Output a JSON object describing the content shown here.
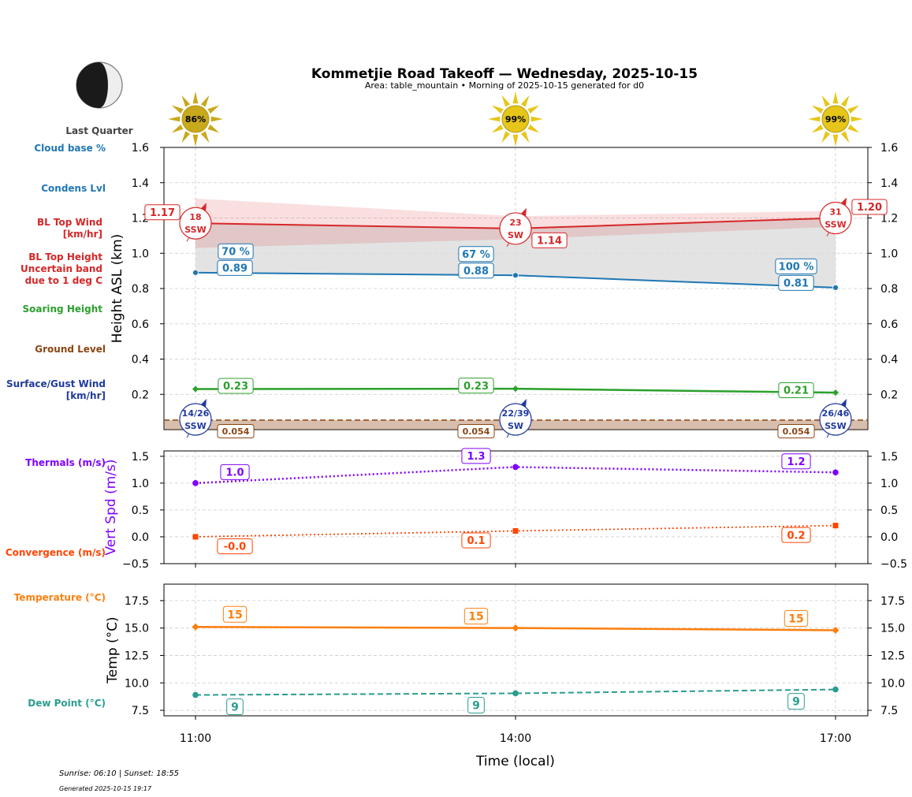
{
  "title": "Kommetjie Road Takeoff — Wednesday, 2025-10-15",
  "subtitle": "Area: table_mountain • Morning of 2025-10-15 generated for d0",
  "moon": {
    "phase_label": "Last Quarter"
  },
  "footer": {
    "sun_times": "Sunrise: 06:10 | Sunset: 18:55",
    "generated": "Generated 2025-10-15 19:17"
  },
  "colors": {
    "cloud": "#1f77b4",
    "bltop": "#d62728",
    "soar": "#2ca02c",
    "ground": "#8b4513",
    "surface": "#1f3a9e",
    "thermal": "#7f00ff",
    "conv": "#ff4500",
    "temp": "#ff7f0e",
    "dew": "#2a9d8f",
    "sun": "#e6c619",
    "sun_dim": "#c9a91c"
  },
  "side_labels": {
    "cloud_base": "Cloud base %",
    "condens": "Condens Lvl",
    "bltop_wind": [
      "BL Top Wind",
      "[km/hr]"
    ],
    "bltop_height": [
      "BL Top Height",
      "Uncertain band",
      "due to 1 deg C"
    ],
    "soaring": "Soaring Height",
    "ground": "Ground Level",
    "surface_wind": [
      "Surface/Gust Wind",
      "[km/hr]"
    ],
    "thermals": "Thermals (m/s)",
    "convergence": "Convergence (m/s)",
    "temperature": "Temperature (°C)",
    "dewpoint": "Dew Point (°C)"
  },
  "chart_data": [
    {
      "type": "line",
      "ylabel": "Height ASL (km)",
      "ylim": [
        0,
        1.6
      ],
      "yticks": [
        "0.2",
        "0.4",
        "0.6",
        "0.8",
        "1.0",
        "1.2",
        "1.4",
        "1.6"
      ],
      "x": [
        "11:00",
        "14:00",
        "17:00"
      ],
      "grid": true,
      "sun_percent": [
        "86%",
        "99%",
        "99%"
      ],
      "series": [
        {
          "key": "bltop",
          "values": [
            1.17,
            1.14,
            1.2
          ],
          "labels": [
            "1.17",
            "1.14",
            "1.20"
          ],
          "band_upper": [
            1.31,
            1.21,
            1.24
          ],
          "band_lower": [
            1.03,
            1.08,
            1.15
          ]
        },
        {
          "key": "condens",
          "values": [
            0.89,
            0.875,
            0.805
          ],
          "labels": [
            "0.89",
            "0.88",
            "0.81"
          ]
        },
        {
          "key": "cloud_pct",
          "labels": [
            "70 %",
            "67 %",
            "100 %"
          ]
        },
        {
          "key": "soar",
          "values": [
            0.23,
            0.232,
            0.21
          ],
          "labels": [
            "0.23",
            "0.23",
            "0.21"
          ]
        },
        {
          "key": "ground",
          "values": [
            0.054,
            0.054,
            0.054
          ],
          "labels": [
            "0.054",
            "0.054",
            "0.054"
          ]
        }
      ],
      "bltop_wind": [
        {
          "speed": "18",
          "dir": "SSW"
        },
        {
          "speed": "23",
          "dir": "SW"
        },
        {
          "speed": "31",
          "dir": "SSW"
        }
      ],
      "surface_wind": [
        {
          "speed": "14/26",
          "dir": "SSW"
        },
        {
          "speed": "22/39",
          "dir": "SW"
        },
        {
          "speed": "26/46",
          "dir": "SSW"
        }
      ]
    },
    {
      "type": "line",
      "ylabel": "Vert Spd (m/s)",
      "ylim": [
        -0.5,
        1.6
      ],
      "yticks": [
        "−0.5",
        "0.0",
        "0.5",
        "1.0",
        "1.5"
      ],
      "x": [
        "11:00",
        "14:00",
        "17:00"
      ],
      "series": [
        {
          "key": "thermal",
          "values": [
            1.0,
            1.3,
            1.2
          ],
          "labels": [
            "1.0",
            "1.3",
            "1.2"
          ]
        },
        {
          "key": "conv",
          "values": [
            0.0,
            0.11,
            0.21
          ],
          "labels": [
            "-0.0",
            "0.1",
            "0.2"
          ]
        }
      ]
    },
    {
      "type": "line",
      "ylabel": "Temp (°C)",
      "xlabel": "Time (local)",
      "ylim": [
        7,
        19
      ],
      "yticks": [
        "7.5",
        "10.0",
        "12.5",
        "15.0",
        "17.5"
      ],
      "x": [
        "11:00",
        "14:00",
        "17:00"
      ],
      "series": [
        {
          "key": "temp",
          "values": [
            15.1,
            15.0,
            14.8
          ],
          "labels": [
            "15",
            "15",
            "15"
          ]
        },
        {
          "key": "dew",
          "values": [
            8.9,
            9.05,
            9.4
          ],
          "labels": [
            "9",
            "9",
            "9"
          ]
        }
      ]
    }
  ]
}
